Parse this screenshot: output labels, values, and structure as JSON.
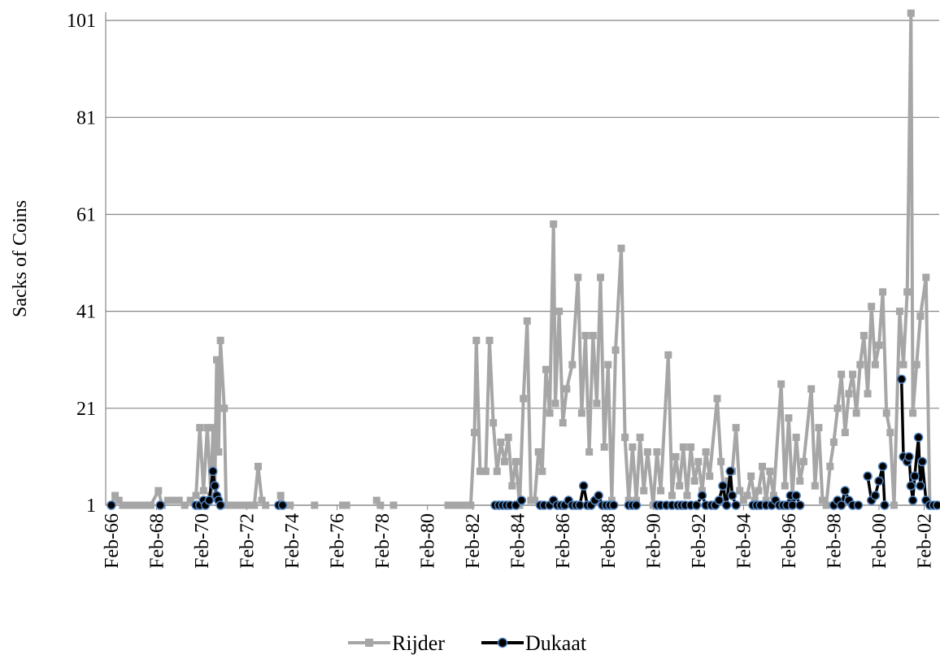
{
  "chart_data": {
    "type": "line",
    "y_label": "Sacks of Coins",
    "xlim": [
      "Nov-65",
      "Oct-02"
    ],
    "xticks": [
      "Feb-66",
      "Feb-68",
      "Feb-70",
      "Feb-72",
      "Feb-74",
      "Feb-76",
      "Feb-78",
      "Feb-80",
      "Feb-82",
      "Feb-84",
      "Feb-86",
      "Feb-88",
      "Feb-90",
      "Feb-92",
      "Feb-94",
      "Feb-96",
      "Feb-98",
      "Feb-00",
      "Feb-02"
    ],
    "ylim": [
      1,
      102.7
    ],
    "yticks": [
      1,
      21,
      41,
      61,
      81,
      101
    ],
    "grid": true,
    "legend": "bottom",
    "series": [
      {
        "name": "Rijder",
        "color": "#a6a6a6",
        "marker": "square",
        "x": [
          "Feb-66",
          "Apr-66",
          "Jun-66",
          "Aug-66",
          "Nov-66",
          "Feb-67",
          "May-67",
          "Aug-67",
          "Nov-67",
          "Mar-68",
          "May-68",
          "Aug-68",
          "Nov-68",
          "Feb-69",
          "May-69",
          "Aug-69",
          "Nov-69",
          "Jan-70",
          "Mar-70",
          "May-70",
          "Jul-70",
          "Aug-70",
          "Sep-70",
          "Oct-70",
          "Nov-70",
          "Dec-70",
          "Feb-71",
          "Mar-71",
          "Jun-71",
          "Sep-71",
          "Dec-71",
          "Mar-72",
          "Jun-72",
          "Aug-72",
          "Oct-72",
          "Dec-72",
          null,
          "Jul-73",
          "Aug-73",
          "Oct-73",
          "Jan-74",
          null,
          "Feb-75",
          null,
          "May-76",
          "Jul-76",
          null,
          "Nov-77",
          "Jan-78",
          null,
          "Aug-78",
          null,
          "Jan-81",
          "Apr-81",
          "Jul-81",
          "Oct-81",
          "Jan-82",
          "Mar-82",
          "Apr-82",
          "Jun-82",
          "Sep-82",
          "Nov-82",
          "Jan-83",
          "Mar-83",
          "May-83",
          "Jul-83",
          "Sep-83",
          "Nov-83",
          "Jan-84",
          "Mar-84",
          "May-84",
          "Jul-84",
          "Sep-84",
          "Nov-84",
          "Jan-85",
          "Mar-85",
          "May-85",
          "Jul-85",
          "Sep-85",
          "Oct-85",
          "Dec-85",
          "Feb-86",
          "Apr-86",
          "Jul-86",
          "Oct-86",
          "Dec-86",
          "Feb-87",
          "Apr-87",
          "Jun-87",
          "Aug-87",
          "Oct-87",
          "Dec-87",
          "Feb-88",
          "Apr-88",
          "Jun-88",
          "Sep-88",
          "Nov-88",
          "Jan-89",
          "Mar-89",
          "May-89",
          "Jul-89",
          "Sep-89",
          "Nov-89",
          "Feb-90",
          "Apr-90",
          "Jun-90",
          "Oct-90",
          "Dec-90",
          "Feb-91",
          "Apr-91",
          "Jun-91",
          "Aug-91",
          "Oct-91",
          "Dec-91",
          "Feb-92",
          "Apr-92",
          "Jun-92",
          "Aug-92",
          "Dec-92",
          "Feb-93",
          "Apr-93",
          "Jun-93",
          "Aug-93",
          "Oct-93",
          "Dec-93",
          "Feb-94",
          "Apr-94",
          "Jun-94",
          "Aug-94",
          "Oct-94",
          "Dec-94",
          "Feb-95",
          "Apr-95",
          "Jun-95",
          "Oct-95",
          "Dec-95",
          "Feb-96",
          "Apr-96",
          "Jun-96",
          "Aug-96",
          "Oct-96",
          "Feb-97",
          "Apr-97",
          "Jun-97",
          "Aug-97",
          "Oct-97",
          "Dec-97",
          "Feb-98",
          "Apr-98",
          "Jun-98",
          "Aug-98",
          "Oct-98",
          "Dec-98",
          "Feb-99",
          "Apr-99",
          "Jun-99",
          "Aug-99",
          "Oct-99",
          "Dec-99",
          "Feb-00",
          "Apr-00",
          "Jun-00",
          "Aug-00",
          "Oct-00",
          "Jan-01",
          "Mar-01",
          "May-01",
          "Jul-01",
          "Aug-01",
          "Oct-01",
          "Dec-01",
          "Mar-02",
          "May-02",
          "Jul-02",
          "Sep-02"
        ],
        "values": [
          1,
          3,
          2,
          1,
          1,
          1,
          1,
          1,
          1,
          4,
          1,
          2,
          2,
          2,
          1,
          2,
          3,
          17,
          4,
          17,
          3,
          17,
          5,
          31,
          12,
          35,
          21,
          1,
          1,
          1,
          1,
          1,
          1,
          9,
          2,
          1,
          null,
          1,
          3,
          1,
          1,
          null,
          1,
          null,
          1,
          1,
          null,
          2,
          1,
          null,
          1,
          null,
          1,
          1,
          1,
          1,
          1,
          16,
          35,
          8,
          8,
          35,
          18,
          8,
          14,
          10,
          15,
          5,
          10,
          1,
          23,
          39,
          2,
          2,
          12,
          8,
          29,
          20,
          59,
          22,
          41,
          18,
          25,
          30,
          48,
          20,
          36,
          12,
          36,
          22,
          48,
          13,
          30,
          2,
          33,
          54,
          15,
          2,
          13,
          2,
          15,
          4,
          12,
          1,
          12,
          4,
          32,
          3,
          11,
          5,
          13,
          3,
          13,
          6,
          10,
          4,
          12,
          7,
          23,
          10,
          2,
          6,
          8,
          17,
          4,
          2,
          3,
          7,
          2,
          4,
          9,
          2,
          8,
          3,
          26,
          5,
          19,
          3,
          15,
          6,
          10,
          25,
          5,
          17,
          2,
          1,
          9,
          14,
          21,
          28,
          16,
          24,
          28,
          20,
          30,
          36,
          24,
          42,
          30,
          34,
          45,
          20,
          16,
          1,
          41,
          30,
          45,
          102.5,
          20,
          30,
          40,
          48,
          1,
          1,
          1
        ]
      },
      {
        "name": "Dukaat",
        "color": "#000000",
        "marker": "circle",
        "marker_edge": "#4f81bd",
        "x": [
          "Feb-66",
          null,
          "Apr-68",
          null,
          "Nov-69",
          "Jan-70",
          "Mar-70",
          "Apr-70",
          "Jun-70",
          "Aug-70",
          "Sep-70",
          "Oct-70",
          "Nov-70",
          "Dec-70",
          null,
          "Jul-73",
          "Sep-73",
          null,
          "Feb-83",
          "Apr-83",
          "Jun-83",
          "Aug-83",
          "Oct-83",
          "Jan-84",
          "Apr-84",
          null,
          "Feb-85",
          "Apr-85",
          null,
          "Jul-85",
          "Sep-85",
          "Nov-85",
          "Jan-86",
          "Mar-86",
          "May-86",
          "Jul-86",
          "Sep-86",
          "Nov-86",
          "Jan-87",
          "Mar-87",
          "May-87",
          "Jul-87",
          "Sep-87",
          "Nov-87",
          "Jan-88",
          "Mar-88",
          "May-88",
          null,
          "Jan-89",
          "Mar-89",
          "May-89",
          null,
          "Apr-90",
          "Jun-90",
          "Sep-90",
          "Dec-90",
          "Mar-91",
          "May-91",
          "Jul-91",
          "Oct-91",
          null,
          "Jan-92",
          "Apr-92",
          "Jun-92",
          "Sep-92",
          "Nov-92",
          "Jan-93",
          "Mar-93",
          "May-93",
          "Jul-93",
          "Aug-93",
          "Oct-93",
          null,
          "Jul-94",
          "Sep-94",
          null,
          "Nov-94",
          "Feb-95",
          null,
          "May-95",
          "Jul-95",
          "Sep-95",
          "Nov-95",
          "Jan-96",
          "Mar-96",
          "Apr-96",
          "Jun-96",
          "Aug-96",
          null,
          "Feb-98",
          "Apr-98",
          "Jun-98",
          "Aug-98",
          "Oct-98",
          "Dec-98",
          "Mar-99",
          null,
          "Aug-99",
          "Oct-99",
          "Dec-99",
          "Feb-00",
          "Apr-00",
          "May-00",
          null,
          "Feb-01",
          "Mar-01",
          "May-01",
          "Jun-01",
          "Jul-01",
          "Aug-01",
          "Sep-01",
          "Nov-01",
          "Dec-01",
          "Jan-02",
          "Mar-02",
          "May-02",
          "Jul-02",
          "Sep-02"
        ],
        "values": [
          1,
          null,
          1,
          null,
          1,
          1,
          2,
          1,
          2,
          8,
          5,
          3,
          2,
          1,
          null,
          1,
          1,
          null,
          1,
          1,
          1,
          1,
          1,
          1,
          2,
          null,
          1,
          1,
          null,
          1,
          2,
          1,
          1,
          1,
          2,
          1,
          1,
          1,
          5,
          1,
          1,
          2,
          3,
          1,
          1,
          1,
          1,
          null,
          1,
          1,
          1,
          null,
          1,
          1,
          1,
          1,
          1,
          1,
          1,
          1,
          null,
          1,
          3,
          1,
          1,
          1,
          2,
          5,
          1,
          8,
          3,
          1,
          null,
          1,
          1,
          null,
          1,
          1,
          null,
          1,
          2,
          1,
          1,
          1,
          3,
          1,
          3,
          1,
          null,
          1,
          2,
          1,
          4,
          2,
          1,
          1,
          null,
          7,
          2,
          3,
          6,
          9,
          1,
          null,
          27,
          11,
          10,
          11,
          5,
          2,
          7,
          15,
          5,
          10,
          2,
          1,
          1,
          1
        ]
      }
    ]
  }
}
